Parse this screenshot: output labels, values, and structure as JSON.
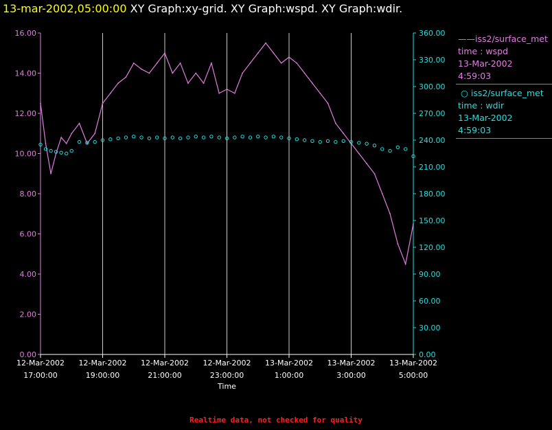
{
  "header": {
    "timestamp": "13-mar-2002,05:00:00",
    "title": "XY Graph:xy-grid.  XY Graph:wspd.  XY Graph:wdir."
  },
  "footer": "Realtime data, not checked for quality",
  "legend": [
    {
      "line1": "iss2/surface_met",
      "line2": "time : wspd",
      "line3": "13-Mar-2002",
      "line4": "4:59:03"
    },
    {
      "line1": "iss2/surface_met",
      "line2": "time : wdir",
      "line3": "13-Mar-2002",
      "line4": "4:59:03"
    }
  ],
  "colors": {
    "wspd": "#e27ee2",
    "wdir": "#20e0e0",
    "axis_left": "#e27ee2",
    "axis_right": "#20e0e0",
    "grid": "#ffffff"
  },
  "chart_data": {
    "type": "line",
    "xlabel": "Time",
    "x_ticks": [
      {
        "l1": "12-Mar-2002",
        "l2": "17:00:00",
        "h": 17
      },
      {
        "l1": "12-Mar-2002",
        "l2": "19:00:00",
        "h": 19
      },
      {
        "l1": "12-Mar-2002",
        "l2": "21:00:00",
        "h": 21
      },
      {
        "l1": "12-Mar-2002",
        "l2": "23:00:00",
        "h": 23
      },
      {
        "l1": "13-Mar-2002",
        "l2": "1:00:00",
        "h": 25
      },
      {
        "l1": "13-Mar-2002",
        "l2": "3:00:00",
        "h": 27
      },
      {
        "l1": "13-Mar-2002",
        "l2": "5:00:00",
        "h": 29
      }
    ],
    "grid": true,
    "y_left": {
      "range": [
        0,
        16
      ],
      "ticks": [
        "0.00",
        "2.00",
        "4.00",
        "6.00",
        "8.00",
        "10.00",
        "12.00",
        "14.00",
        "16.00"
      ]
    },
    "y_right": {
      "range": [
        0,
        360
      ],
      "ticks": [
        "0.00",
        "30.00",
        "60.00",
        "90.00",
        "120.00",
        "150.00",
        "180.00",
        "210.00",
        "240.00",
        "270.00",
        "300.00",
        "330.00",
        "360.00"
      ]
    },
    "series": [
      {
        "name": "iss2/surface_met time : wspd",
        "axis": "left",
        "style": "line",
        "x": [
          "12-Mar 17:00",
          "12-Mar 17:10",
          "12-Mar 17:20",
          "12-Mar 17:30",
          "12-Mar 17:40",
          "12-Mar 17:50",
          "12-Mar 18:00",
          "12-Mar 18:15",
          "12-Mar 18:30",
          "12-Mar 18:45",
          "12-Mar 19:00",
          "12-Mar 19:15",
          "12-Mar 19:30",
          "12-Mar 19:45",
          "12-Mar 20:00",
          "12-Mar 20:15",
          "12-Mar 20:30",
          "12-Mar 20:45",
          "12-Mar 21:00",
          "12-Mar 21:15",
          "12-Mar 21:30",
          "12-Mar 21:45",
          "12-Mar 22:00",
          "12-Mar 22:15",
          "12-Mar 22:30",
          "12-Mar 22:45",
          "12-Mar 23:00",
          "12-Mar 23:15",
          "12-Mar 23:30",
          "12-Mar 23:45",
          "13-Mar 00:00",
          "13-Mar 00:15",
          "13-Mar 00:30",
          "13-Mar 00:45",
          "13-Mar 01:00",
          "13-Mar 01:15",
          "13-Mar 01:30",
          "13-Mar 01:45",
          "13-Mar 02:00",
          "13-Mar 02:15",
          "13-Mar 02:30",
          "13-Mar 02:45",
          "13-Mar 03:00",
          "13-Mar 03:15",
          "13-Mar 03:30",
          "13-Mar 03:45",
          "13-Mar 04:00",
          "13-Mar 04:15",
          "13-Mar 04:30",
          "13-Mar 04:45",
          "13-Mar 05:00"
        ],
        "y": [
          12.5,
          10.5,
          9.0,
          10.0,
          10.8,
          10.5,
          11.0,
          11.5,
          10.5,
          11.0,
          12.5,
          13.0,
          13.5,
          13.8,
          14.5,
          14.2,
          14.0,
          14.5,
          15.0,
          14.0,
          14.5,
          13.5,
          14.0,
          13.5,
          14.5,
          13.0,
          13.2,
          13.0,
          14.0,
          14.5,
          15.0,
          15.5,
          15.0,
          14.5,
          14.8,
          14.5,
          14.0,
          13.5,
          13.0,
          12.5,
          11.5,
          11.0,
          10.5,
          10.0,
          9.5,
          9.0,
          8.0,
          7.0,
          5.5,
          4.5,
          6.5
        ]
      },
      {
        "name": "iss2/surface_met time : wdir",
        "axis": "right",
        "style": "markers",
        "x": [
          "12-Mar 17:00",
          "12-Mar 17:10",
          "12-Mar 17:20",
          "12-Mar 17:30",
          "12-Mar 17:40",
          "12-Mar 17:50",
          "12-Mar 18:00",
          "12-Mar 18:15",
          "12-Mar 18:30",
          "12-Mar 18:45",
          "12-Mar 19:00",
          "12-Mar 19:15",
          "12-Mar 19:30",
          "12-Mar 19:45",
          "12-Mar 20:00",
          "12-Mar 20:15",
          "12-Mar 20:30",
          "12-Mar 20:45",
          "12-Mar 21:00",
          "12-Mar 21:15",
          "12-Mar 21:30",
          "12-Mar 21:45",
          "12-Mar 22:00",
          "12-Mar 22:15",
          "12-Mar 22:30",
          "12-Mar 22:45",
          "12-Mar 23:00",
          "12-Mar 23:15",
          "12-Mar 23:30",
          "12-Mar 23:45",
          "13-Mar 00:00",
          "13-Mar 00:15",
          "13-Mar 00:30",
          "13-Mar 00:45",
          "13-Mar 01:00",
          "13-Mar 01:15",
          "13-Mar 01:30",
          "13-Mar 01:45",
          "13-Mar 02:00",
          "13-Mar 02:15",
          "13-Mar 02:30",
          "13-Mar 02:45",
          "13-Mar 03:00",
          "13-Mar 03:15",
          "13-Mar 03:30",
          "13-Mar 03:45",
          "13-Mar 04:00",
          "13-Mar 04:15",
          "13-Mar 04:30",
          "13-Mar 04:45",
          "13-Mar 05:00"
        ],
        "y": [
          235,
          230,
          228,
          227,
          226,
          225,
          228,
          238,
          237,
          238,
          240,
          241,
          242,
          243,
          244,
          243,
          242,
          243,
          242,
          243,
          242,
          243,
          244,
          243,
          244,
          243,
          242,
          243,
          244,
          243,
          244,
          243,
          244,
          243,
          242,
          241,
          240,
          239,
          238,
          239,
          238,
          239,
          238,
          237,
          236,
          234,
          230,
          228,
          232,
          230,
          222
        ]
      }
    ]
  }
}
